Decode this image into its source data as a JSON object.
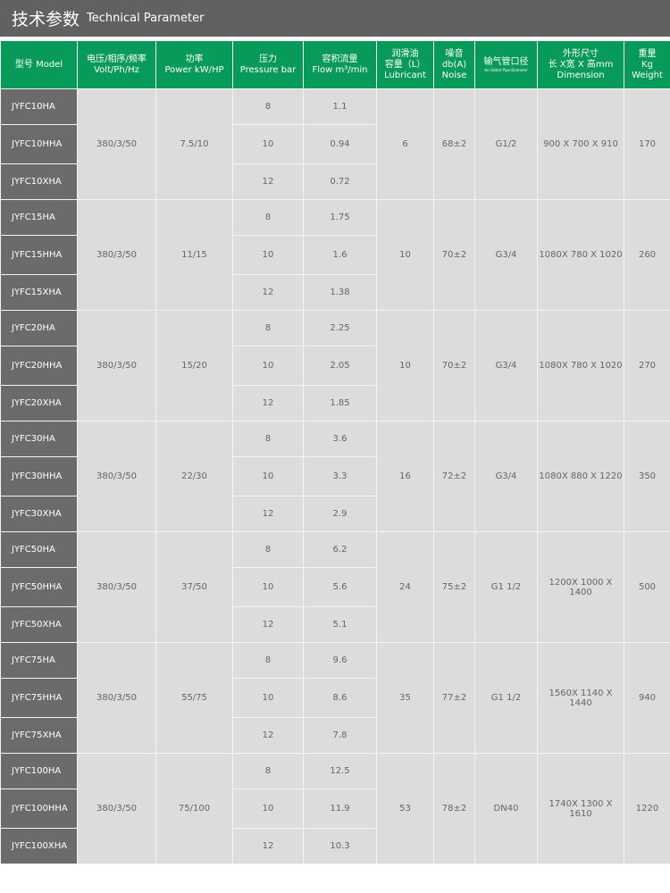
{
  "title": {
    "cn": "技术参数",
    "en": "Technical Parameter"
  },
  "colors": {
    "header_green": "#079a58",
    "title_bar": "#616162",
    "model_cell": "#6b6b6b",
    "cell": "#dcdcdc"
  },
  "headers": [
    {
      "l1": "型号 Model"
    },
    {
      "l1": "电压/相序/频率",
      "l2": "Volt/Ph/Hz"
    },
    {
      "l1": "功率",
      "l2": "Power kW/HP"
    },
    {
      "l1": "压力",
      "l2": "Pressure bar"
    },
    {
      "l1": "容积流量",
      "l2": "Flow m³/min"
    },
    {
      "l1": "润滑油",
      "l2": "容量（L）",
      "l3": "Lubricant"
    },
    {
      "l1": "噪音",
      "l2": "db(A)",
      "l3": "Noise"
    },
    {
      "l1": "输气管口径",
      "l2": "Air Outlet Pipe Diameter"
    },
    {
      "l1": "外形尺寸",
      "l2": "长 X宽 X 高mm",
      "l3": "Dimension"
    },
    {
      "l1": "重量",
      "l2": "Kg",
      "l3": "Weight"
    }
  ],
  "groups": [
    {
      "models": [
        "JYFC10HA",
        "JYFC10HHA",
        "JYFC10XHA"
      ],
      "volt": "380/3/50",
      "power": "7.5/10",
      "pressure": [
        "8",
        "10",
        "12"
      ],
      "flow": [
        "1.1",
        "0.94",
        "0.72"
      ],
      "lubricant": "6",
      "noise": "68±2",
      "pipe": "G1/2",
      "dimension": "900 X 700 X 910",
      "weight": "170"
    },
    {
      "models": [
        "JYFC15HA",
        "JYFC15HHA",
        "JYFC15XHA"
      ],
      "volt": "380/3/50",
      "power": "11/15",
      "pressure": [
        "8",
        "10",
        "12"
      ],
      "flow": [
        "1.75",
        "1.6",
        "1.38"
      ],
      "lubricant": "10",
      "noise": "70±2",
      "pipe": "G3/4",
      "dimension": "1080X 780 X 1020",
      "weight": "260"
    },
    {
      "models": [
        "JYFC20HA",
        "JYFC20HHA",
        "JYFC20XHA"
      ],
      "volt": "380/3/50",
      "power": "15/20",
      "pressure": [
        "8",
        "10",
        "12"
      ],
      "flow": [
        "2.25",
        "2.05",
        "1.85"
      ],
      "lubricant": "10",
      "noise": "70±2",
      "pipe": "G3/4",
      "dimension": "1080X 780 X 1020",
      "weight": "270"
    },
    {
      "models": [
        "JYFC30HA",
        "JYFC30HHA",
        "JYFC30XHA"
      ],
      "volt": "380/3/50",
      "power": "22/30",
      "pressure": [
        "8",
        "10",
        "12"
      ],
      "flow": [
        "3.6",
        "3.3",
        "2.9"
      ],
      "lubricant": "16",
      "noise": "72±2",
      "pipe": "G3/4",
      "dimension": "1080X 880 X 1220",
      "weight": "350"
    },
    {
      "models": [
        "JYFC50HA",
        "JYFC50HHA",
        "JYFC50XHA"
      ],
      "volt": "380/3/50",
      "power": "37/50",
      "pressure": [
        "8",
        "10",
        "12"
      ],
      "flow": [
        "6.2",
        "5.6",
        "5.1"
      ],
      "lubricant": "24",
      "noise": "75±2",
      "pipe": "G1 1/2",
      "dimension": "1200X 1000 X 1400",
      "weight": "500"
    },
    {
      "models": [
        "JYFC75HA",
        "JYFC75HHA",
        "JYFC75XHA"
      ],
      "volt": "380/3/50",
      "power": "55/75",
      "pressure": [
        "8",
        "10",
        "12"
      ],
      "flow": [
        "9.6",
        "8.6",
        "7.8"
      ],
      "lubricant": "35",
      "noise": "77±2",
      "pipe": "G1 1/2",
      "dimension": "1560X 1140 X 1440",
      "weight": "940"
    },
    {
      "models": [
        "JYFC100HA",
        "JYFC100HHA",
        "JYFC100XHA"
      ],
      "volt": "380/3/50",
      "power": "75/100",
      "pressure": [
        "8",
        "10",
        "12"
      ],
      "flow": [
        "12.5",
        "11.9",
        "10.3"
      ],
      "lubricant": "53",
      "noise": "78±2",
      "pipe": "DN40",
      "dimension": "1740X 1300 X 1610",
      "weight": "1220"
    }
  ]
}
